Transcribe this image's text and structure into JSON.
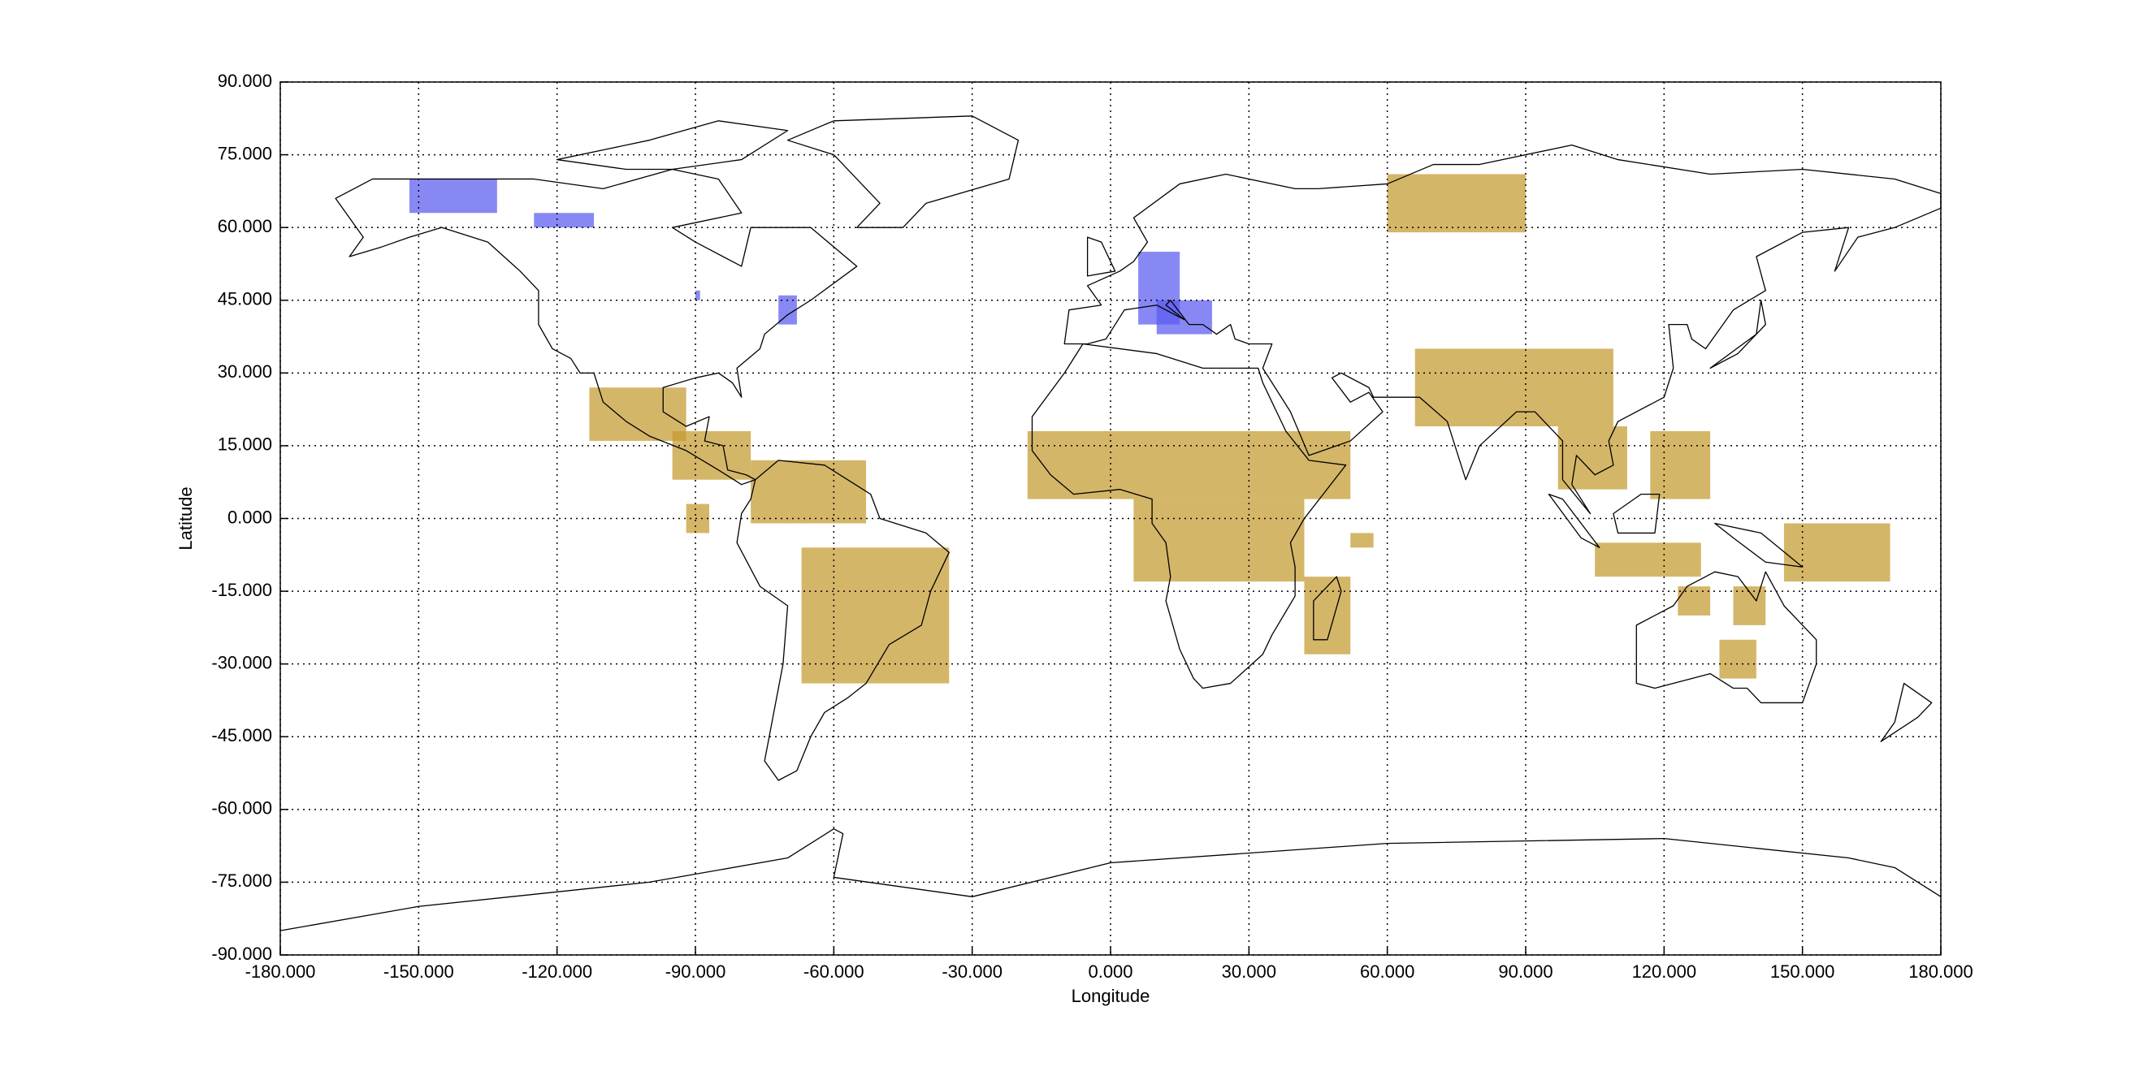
{
  "chart_data": {
    "type": "map",
    "xlabel": "Longitude",
    "ylabel": "Latitude",
    "xlim": [
      -180,
      180
    ],
    "ylim": [
      -90,
      90
    ],
    "xticks": [
      {
        "value": -180,
        "label": "-180.000"
      },
      {
        "value": -150,
        "label": "-150.000"
      },
      {
        "value": -120,
        "label": "-120.000"
      },
      {
        "value": -90,
        "label": "-90.000"
      },
      {
        "value": -60,
        "label": "-60.000"
      },
      {
        "value": -30,
        "label": "-30.000"
      },
      {
        "value": 0,
        "label": "0.000"
      },
      {
        "value": 30,
        "label": "30.000"
      },
      {
        "value": 60,
        "label": "60.000"
      },
      {
        "value": 90,
        "label": "90.000"
      },
      {
        "value": 120,
        "label": "120.000"
      },
      {
        "value": 150,
        "label": "150.000"
      },
      {
        "value": 180,
        "label": "180.000"
      }
    ],
    "yticks": [
      {
        "value": 90,
        "label": "90.000"
      },
      {
        "value": 75,
        "label": "75.000"
      },
      {
        "value": 60,
        "label": "60.000"
      },
      {
        "value": 45,
        "label": "45.000"
      },
      {
        "value": 30,
        "label": "30.000"
      },
      {
        "value": 15,
        "label": "15.000"
      },
      {
        "value": 0,
        "label": "0.000"
      },
      {
        "value": -15,
        "label": "-15.000"
      },
      {
        "value": -30,
        "label": "-30.000"
      },
      {
        "value": -45,
        "label": "-45.000"
      },
      {
        "value": -60,
        "label": "-60.000"
      },
      {
        "value": -75,
        "label": "-75.000"
      },
      {
        "value": -90,
        "label": "-90.000"
      }
    ],
    "grid": true,
    "regions": [
      {
        "color": "#c49a2e",
        "boxes": [
          [
            -113,
            16,
            -92,
            27
          ],
          [
            -95,
            8,
            -78,
            18
          ],
          [
            -78,
            -1,
            -53,
            12
          ],
          [
            -92,
            -3,
            -87,
            3
          ],
          [
            -67,
            -34,
            -35,
            -6
          ],
          [
            -18,
            4,
            52,
            18
          ],
          [
            5,
            -13,
            42,
            4
          ],
          [
            42,
            -28,
            52,
            -12
          ],
          [
            52,
            -6,
            57,
            -3
          ],
          [
            60,
            59,
            90,
            71
          ],
          [
            66,
            19,
            109,
            35
          ],
          [
            97,
            6,
            112,
            19
          ],
          [
            117,
            4,
            130,
            18
          ],
          [
            105,
            -12,
            128,
            -5
          ],
          [
            146,
            -13,
            169,
            -1
          ],
          [
            123,
            -20,
            130,
            -14
          ],
          [
            135,
            -22,
            142,
            -14
          ],
          [
            132,
            -33,
            140,
            -25
          ]
        ]
      },
      {
        "color": "#5a5af0",
        "boxes": [
          [
            -152,
            63,
            -133,
            70
          ],
          [
            -125,
            60,
            -112,
            63
          ],
          [
            -90,
            45,
            -89,
            47
          ],
          [
            -72,
            40,
            -68,
            46
          ],
          [
            6,
            40,
            15,
            55
          ],
          [
            10,
            38,
            22,
            45
          ]
        ]
      }
    ]
  }
}
